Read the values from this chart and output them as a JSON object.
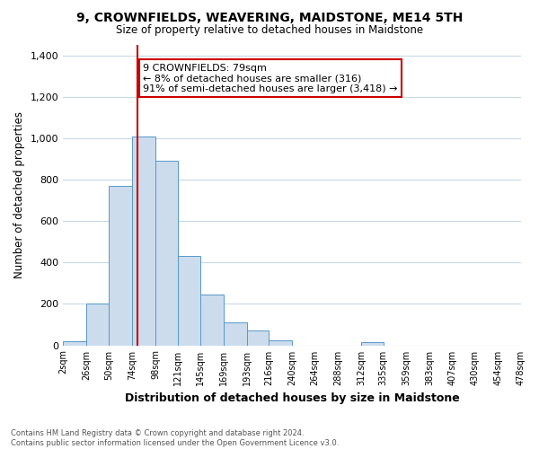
{
  "title": "9, CROWNFIELDS, WEAVERING, MAIDSTONE, ME14 5TH",
  "subtitle": "Size of property relative to detached houses in Maidstone",
  "xlabel": "Distribution of detached houses by size in Maidstone",
  "ylabel": "Number of detached properties",
  "bar_color": "#ccdcec",
  "bar_edge_color": "#5599cc",
  "vline_x": 79,
  "vline_color": "#cc0000",
  "annotation_line1": "9 CROWNFIELDS: 79sqm",
  "annotation_line2": "← 8% of detached houses are smaller (316)",
  "annotation_line3": "91% of semi-detached houses are larger (3,418) →",
  "annotation_box_facecolor": "#ffffff",
  "annotation_box_edgecolor": "#cc0000",
  "bin_edges": [
    2,
    26,
    50,
    74,
    98,
    121,
    145,
    169,
    193,
    216,
    240,
    264,
    288,
    312,
    335,
    359,
    383,
    407,
    430,
    454,
    478
  ],
  "bar_heights": [
    20,
    200,
    770,
    1010,
    890,
    430,
    245,
    110,
    70,
    25,
    0,
    0,
    0,
    15,
    0,
    0,
    0,
    0,
    0,
    0
  ],
  "ylim": [
    0,
    1450
  ],
  "yticks": [
    0,
    200,
    400,
    600,
    800,
    1000,
    1200,
    1400
  ],
  "xtick_labels": [
    "2sqm",
    "26sqm",
    "50sqm",
    "74sqm",
    "98sqm",
    "121sqm",
    "145sqm",
    "169sqm",
    "193sqm",
    "216sqm",
    "240sqm",
    "264sqm",
    "288sqm",
    "312sqm",
    "335sqm",
    "359sqm",
    "383sqm",
    "407sqm",
    "430sqm",
    "454sqm",
    "478sqm"
  ],
  "footer_text": "Contains HM Land Registry data © Crown copyright and database right 2024.\nContains public sector information licensed under the Open Government Licence v3.0.",
  "background_color": "#ffffff",
  "grid_color": "#c8d8e8"
}
